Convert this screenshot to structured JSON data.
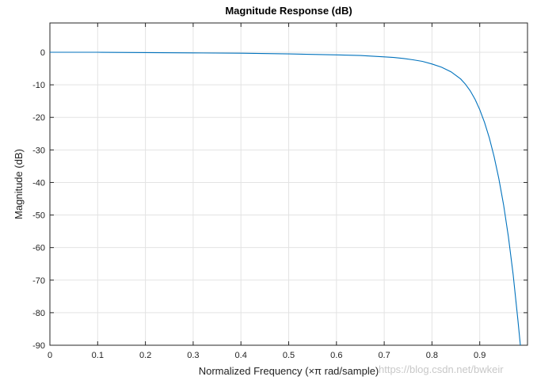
{
  "chart_data": {
    "type": "line",
    "title": "Magnitude Response (dB)",
    "xlabel": "Normalized Frequency (×π rad/sample)",
    "ylabel": "Magnitude (dB)",
    "xlim": [
      0,
      1
    ],
    "ylim": [
      -90,
      9
    ],
    "xticks": [
      0,
      0.1,
      0.2,
      0.3,
      0.4,
      0.5,
      0.6,
      0.7,
      0.8,
      0.9
    ],
    "xtick_labels": [
      "0",
      "0.1",
      "0.2",
      "0.3",
      "0.4",
      "0.5",
      "0.6",
      "0.7",
      "0.8",
      "0.9"
    ],
    "yticks": [
      0,
      -10,
      -20,
      -30,
      -40,
      -50,
      -60,
      -70,
      -80,
      -90
    ],
    "ytick_labels": [
      "0",
      "-10",
      "-20",
      "-30",
      "-40",
      "-50",
      "-60",
      "-70",
      "-80",
      "-90"
    ],
    "grid": true,
    "series": [
      {
        "name": "Magnitude",
        "color": "#0072bd",
        "x": [
          0,
          0.1,
          0.2,
          0.3,
          0.4,
          0.5,
          0.6,
          0.65,
          0.7,
          0.72,
          0.74,
          0.76,
          0.78,
          0.8,
          0.82,
          0.84,
          0.86,
          0.87,
          0.88,
          0.89,
          0.9,
          0.91,
          0.92,
          0.93,
          0.94,
          0.95,
          0.96,
          0.97,
          0.98,
          0.985
        ],
        "y": [
          0,
          0,
          -0.1,
          -0.2,
          -0.3,
          -0.5,
          -0.8,
          -1.0,
          -1.4,
          -1.6,
          -1.9,
          -2.3,
          -2.8,
          -3.6,
          -4.6,
          -6.0,
          -8.2,
          -9.8,
          -11.8,
          -14.4,
          -17.6,
          -21.5,
          -26.3,
          -32.0,
          -38.8,
          -47.0,
          -56.7,
          -68.3,
          -82.3,
          -90
        ]
      }
    ]
  },
  "watermark": "https://blog.csdn.net/bwkeir"
}
